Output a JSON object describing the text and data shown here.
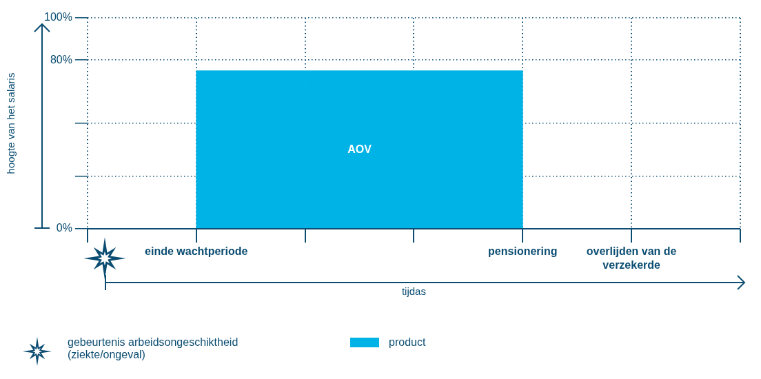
{
  "chart_data": {
    "type": "bar",
    "categories": [
      null,
      null,
      null,
      null,
      null,
      null
    ],
    "series": [
      {
        "name": "product",
        "color": "#00b3e6",
        "values": [
          null,
          75,
          75,
          75,
          null,
          null
        ]
      }
    ],
    "ylim": [
      0,
      100
    ],
    "yticks": [
      {
        "value": 0,
        "label": "0%"
      },
      {
        "value": 25,
        "label": null
      },
      {
        "value": 50,
        "label": null
      },
      {
        "value": 80,
        "label": "80%"
      },
      {
        "value": 100,
        "label": "100%"
      }
    ],
    "ylabel": "hoogte van het salaris",
    "xlabel": "tijdas",
    "grid": true,
    "legend": "bottom",
    "annotations": [
      "einde wachtperiode",
      "pensionering",
      "overlijden van de verzekerde",
      "AOV",
      "gebeurtenis arbeidsongeschiktheid (ziekte/ongeval)"
    ]
  }
}
